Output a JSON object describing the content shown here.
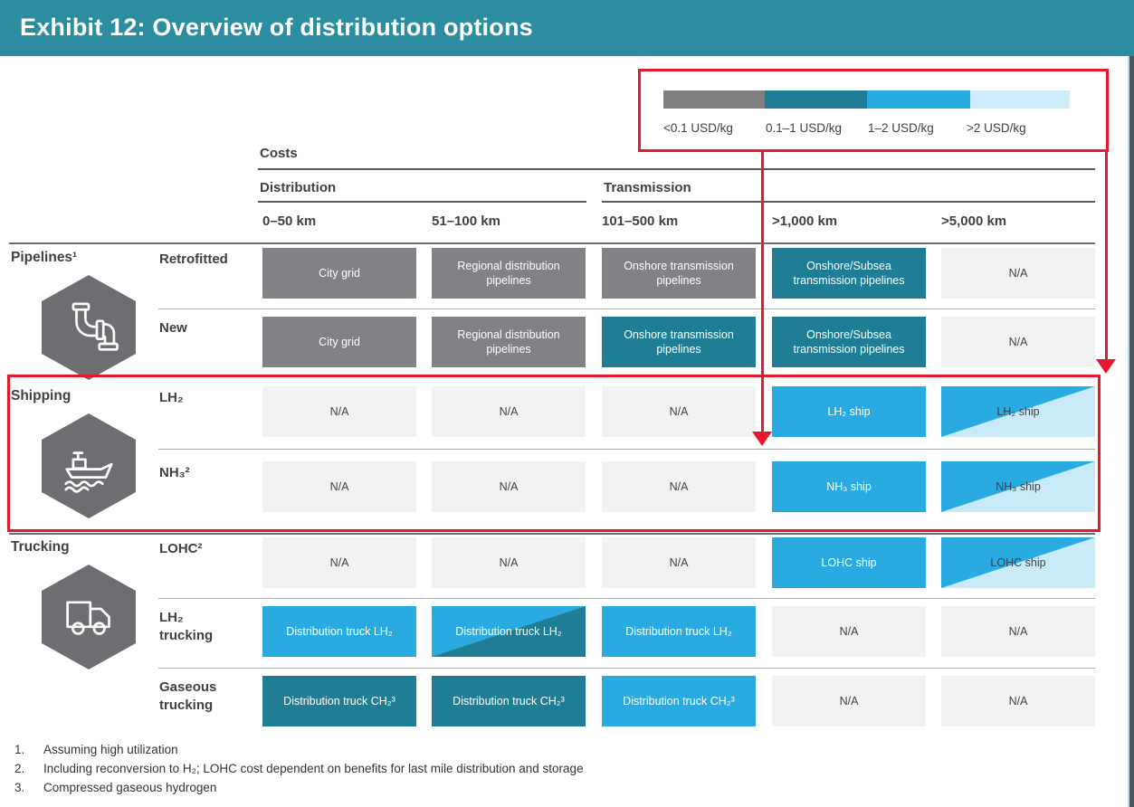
{
  "title": "Exhibit 12: Overview of distribution options",
  "legend": {
    "items": [
      {
        "label": "<0.1 USD/kg",
        "color": "#7F7F7F"
      },
      {
        "label": "0.1–1 USD/kg",
        "color": "#1F7E96"
      },
      {
        "label": "1–2 USD/kg",
        "color": "#29ABE2"
      },
      {
        "label": ">2 USD/kg",
        "color": "#CDEDFB"
      }
    ]
  },
  "table": {
    "costs_label": "Costs",
    "distribution_label": "Distribution",
    "transmission_label": "Transmission",
    "columns": [
      "0–50 km",
      "51–100 km",
      "101–500 km",
      ">1,000 km",
      ">5,000 km"
    ],
    "sections": [
      {
        "label": "Pipelines¹",
        "icon": "pipelines-icon",
        "rows": [
          {
            "label": "Retrofitted",
            "cells": [
              {
                "text": "City grid",
                "style": "gray"
              },
              {
                "text": "Regional distribution pipelines",
                "style": "gray"
              },
              {
                "text": "Onshore transmission pipelines",
                "style": "gray"
              },
              {
                "text": "Onshore/Subsea transmission pipelines",
                "style": "teal"
              },
              {
                "text": "N/A",
                "style": "na"
              }
            ]
          },
          {
            "label": "New",
            "cells": [
              {
                "text": "City grid",
                "style": "gray"
              },
              {
                "text": "Regional distribution pipelines",
                "style": "gray"
              },
              {
                "text": "Onshore transmission pipelines",
                "style": "teal"
              },
              {
                "text": "Onshore/Subsea transmission pipelines",
                "style": "teal"
              },
              {
                "text": "N/A",
                "style": "na"
              }
            ]
          }
        ]
      },
      {
        "label": "Shipping",
        "icon": "ship-icon",
        "rows": [
          {
            "label": "LH₂",
            "cells": [
              {
                "text": "N/A",
                "style": "na"
              },
              {
                "text": "N/A",
                "style": "na"
              },
              {
                "text": "N/A",
                "style": "na"
              },
              {
                "text": "LH₂ ship",
                "style": "blue"
              },
              {
                "text": "LH₂ ship",
                "style": "split-blue-pale"
              }
            ]
          },
          {
            "label": "NH₃²",
            "cells": [
              {
                "text": "N/A",
                "style": "na"
              },
              {
                "text": "N/A",
                "style": "na"
              },
              {
                "text": "N/A",
                "style": "na"
              },
              {
                "text": "NH₃ ship",
                "style": "blue"
              },
              {
                "text": "NH₃ ship",
                "style": "split-blue-pale"
              }
            ]
          }
        ]
      },
      {
        "label": "Trucking",
        "icon": "truck-icon",
        "rows": [
          {
            "label": "LOHC²",
            "cells": [
              {
                "text": "N/A",
                "style": "na"
              },
              {
                "text": "N/A",
                "style": "na"
              },
              {
                "text": "N/A",
                "style": "na"
              },
              {
                "text": "LOHC ship",
                "style": "blue"
              },
              {
                "text": "LOHC ship",
                "style": "split-blue-pale"
              }
            ]
          },
          {
            "label": "LH₂\ntrucking",
            "cells": [
              {
                "text": "Distribution truck LH₂",
                "style": "blue"
              },
              {
                "text": "Distribution truck LH₂",
                "style": "split-blue-teal"
              },
              {
                "text": "Distribution truck LH₂",
                "style": "blue"
              },
              {
                "text": "N/A",
                "style": "na"
              },
              {
                "text": "N/A",
                "style": "na"
              }
            ]
          },
          {
            "label": "Gaseous\ntrucking",
            "cells": [
              {
                "text": "Distribution truck CH₂³",
                "style": "teal"
              },
              {
                "text": "Distribution truck CH₂³",
                "style": "teal"
              },
              {
                "text": "Distribution truck CH₂³",
                "style": "blue"
              },
              {
                "text": "N/A",
                "style": "na"
              },
              {
                "text": "N/A",
                "style": "na"
              }
            ]
          }
        ]
      }
    ]
  },
  "footnotes": [
    {
      "num": "1.",
      "text": "Assuming high utilization"
    },
    {
      "num": "2.",
      "text": "Including reconversion to H₂; LOHC cost dependent on benefits for last mile distribution and storage"
    },
    {
      "num": "3.",
      "text": "Compressed gaseous hydrogen"
    }
  ],
  "annotation_colors": {
    "highlight_red": "#E7182C",
    "header_teal": "#2C8CA0"
  },
  "chart_data": {
    "type": "heatmap",
    "title": "Exhibit 12: Overview of distribution options",
    "legend": [
      "<0.1 USD/kg",
      "0.1–1 USD/kg",
      "1–2 USD/kg",
      ">2 USD/kg"
    ],
    "legend_colors": [
      "#7F7F7F",
      "#1F7E96",
      "#29ABE2",
      "#CDEDFB"
    ],
    "columns": [
      "0–50 km",
      "51–100 km",
      "101–500 km",
      ">1,000 km",
      ">5,000 km"
    ],
    "column_groups": {
      "Distribution": [
        "0–50 km",
        "51–100 km"
      ],
      "Transmission": [
        "101–500 km",
        ">1,000 km",
        ">5,000 km"
      ]
    },
    "unit": "USD/kg",
    "rows": [
      {
        "group": "Pipelines¹",
        "option": "Retrofitted",
        "labels": [
          "City grid",
          "Regional distribution pipelines",
          "Onshore transmission pipelines",
          "Onshore/Subsea transmission pipelines",
          "N/A"
        ],
        "cost_ranges": [
          "<0.1",
          "<0.1",
          "<0.1",
          "0.1–1",
          "N/A"
        ]
      },
      {
        "group": "Pipelines¹",
        "option": "New",
        "labels": [
          "City grid",
          "Regional distribution pipelines",
          "Onshore transmission pipelines",
          "Onshore/Subsea transmission pipelines",
          "N/A"
        ],
        "cost_ranges": [
          "<0.1",
          "<0.1",
          "0.1–1",
          "0.1–1",
          "N/A"
        ]
      },
      {
        "group": "Shipping",
        "option": "LH₂",
        "labels": [
          "N/A",
          "N/A",
          "N/A",
          "LH₂ ship",
          "LH₂ ship"
        ],
        "cost_ranges": [
          "N/A",
          "N/A",
          "N/A",
          "1–2",
          "1–2 / >2"
        ]
      },
      {
        "group": "Shipping",
        "option": "NH₃²",
        "labels": [
          "N/A",
          "N/A",
          "N/A",
          "NH₃ ship",
          "NH₃ ship"
        ],
        "cost_ranges": [
          "N/A",
          "N/A",
          "N/A",
          "1–2",
          "1–2 / >2"
        ]
      },
      {
        "group": "Trucking",
        "option": "LOHC²",
        "labels": [
          "N/A",
          "N/A",
          "N/A",
          "LOHC ship",
          "LOHC ship"
        ],
        "cost_ranges": [
          "N/A",
          "N/A",
          "N/A",
          "1–2",
          "1–2 / >2"
        ]
      },
      {
        "group": "Trucking",
        "option": "LH₂ trucking",
        "labels": [
          "Distribution truck LH₂",
          "Distribution truck LH₂",
          "Distribution truck LH₂",
          "N/A",
          "N/A"
        ],
        "cost_ranges": [
          "1–2",
          "1–2 / 0.1–1",
          "1–2",
          "N/A",
          "N/A"
        ]
      },
      {
        "group": "Trucking",
        "option": "Gaseous trucking",
        "labels": [
          "Distribution truck CH₂³",
          "Distribution truck CH₂³",
          "Distribution truck CH₂³",
          "N/A",
          "N/A"
        ],
        "cost_ranges": [
          "0.1–1",
          "0.1–1",
          "1–2",
          "N/A",
          "N/A"
        ]
      }
    ],
    "annotations": [
      "Red rectangle highlights the Shipping rows",
      "Two red arrows point from the cost legend down into the table"
    ]
  }
}
